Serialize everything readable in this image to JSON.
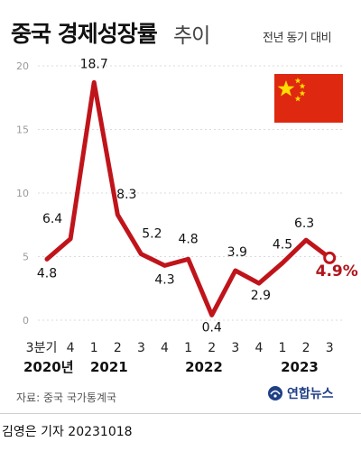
{
  "header": {
    "title_bold": "중국 경제성장률",
    "title_light": "추이",
    "subtitle": "전년 동기 대비",
    "flag_icon": "china-flag"
  },
  "footer": {
    "source": "자료: 중국 국가통계국",
    "logo_text": "연합뉴스",
    "credit": "김영은 기자  20231018"
  },
  "chart_data": {
    "type": "line",
    "x": [
      "3분기",
      "4",
      "1",
      "2",
      "3",
      "4",
      "1",
      "2",
      "3",
      "4",
      "1",
      "2",
      "3"
    ],
    "year_labels": [
      "2020년",
      "2021",
      "2022",
      "2023"
    ],
    "values": [
      4.8,
      6.4,
      18.7,
      8.3,
      5.2,
      4.3,
      4.8,
      0.4,
      3.9,
      2.9,
      4.5,
      6.3,
      4.9
    ],
    "value_labels": [
      "4.8",
      "6.4",
      "18.7",
      "8.3",
      "5.2",
      "4.3",
      "4.8",
      "0.4",
      "3.9",
      "2.9",
      "4.5",
      "6.3",
      "4.9%"
    ],
    "y_ticks": [
      "0",
      "5",
      "10",
      "15",
      "20"
    ],
    "ylim": [
      0,
      20
    ],
    "grid": true,
    "colors": {
      "line": "#c0141b",
      "label": "#111111",
      "highlight": "#b0151c",
      "grid": "#cfcfcf",
      "tick": "#9a9a9a"
    }
  }
}
